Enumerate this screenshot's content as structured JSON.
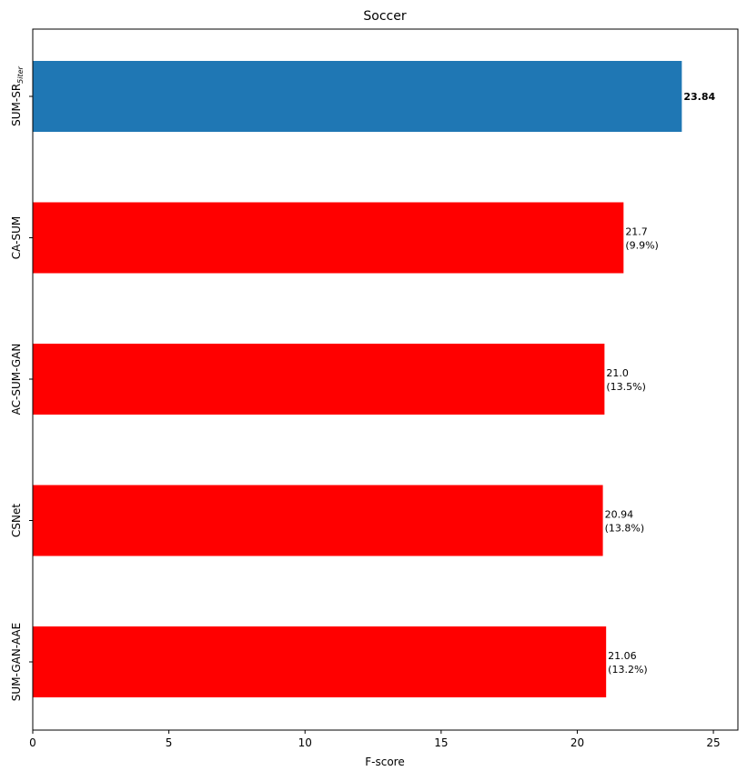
{
  "chart_data": {
    "type": "barh",
    "title": "Soccer",
    "xlabel": "F-score",
    "categories": [
      "SUM-SR",
      "CA-SUM",
      "AC-SUM-GAN",
      "CSNet",
      "SUM-GAN-AAE"
    ],
    "category_subscripts": [
      "5iter",
      null,
      null,
      null,
      null
    ],
    "values": [
      23.84,
      21.7,
      21.0,
      20.94,
      21.06
    ],
    "value_labels": [
      [
        "23.84"
      ],
      [
        "21.7",
        "(9.9%)"
      ],
      [
        "21.0",
        "(13.5%)"
      ],
      [
        "20.94",
        "(13.8%)"
      ],
      [
        "21.06",
        "(13.2%)"
      ]
    ],
    "colors": [
      "#1f77b4",
      "#ff0000",
      "#ff0000",
      "#ff0000",
      "#ff0000"
    ],
    "xlim": [
      0,
      25.9
    ],
    "xticks": [
      0,
      5,
      10,
      15,
      20,
      25
    ]
  }
}
